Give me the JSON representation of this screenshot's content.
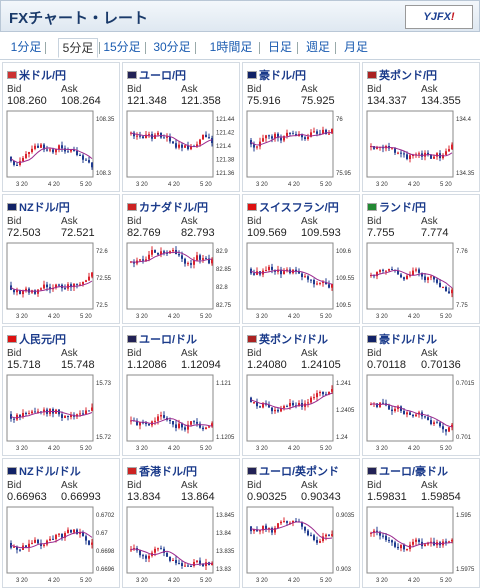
{
  "header": {
    "title": "FXチャート・レート",
    "logo": "YJFX!"
  },
  "tabs": [
    "1分足",
    "5分足",
    "15分足",
    "30分足",
    "1時間足",
    "日足",
    "週足",
    "月足"
  ],
  "active_tab": 1,
  "labels": {
    "bid": "Bid",
    "ask": "Ask"
  },
  "pairs": [
    {
      "name": "米ドル/円",
      "bid": "108.260",
      "ask": "108.264",
      "ticks": [
        "108.35",
        "108.3"
      ],
      "x": [
        "3 20",
        "4 20",
        "5 20"
      ],
      "flag": "#c33"
    },
    {
      "name": "ユーロ/円",
      "bid": "121.348",
      "ask": "121.358",
      "ticks": [
        "121.44",
        "121.42",
        "121.4",
        "121.38",
        "121.36"
      ],
      "x": [
        "3 20",
        "4 20",
        "5 20"
      ],
      "flag": "#225"
    },
    {
      "name": "豪ドル/円",
      "bid": "75.916",
      "ask": "75.925",
      "ticks": [
        "76",
        "75.95"
      ],
      "x": [
        "3 20",
        "4 20",
        "5 20"
      ],
      "flag": "#126"
    },
    {
      "name": "英ポンド/円",
      "bid": "134.337",
      "ask": "134.355",
      "ticks": [
        "134.4",
        "134.35"
      ],
      "x": [
        "3 20",
        "4 20",
        "5 20"
      ],
      "flag": "#a22"
    },
    {
      "name": "NZドル/円",
      "bid": "72.503",
      "ask": "72.521",
      "ticks": [
        "72.6",
        "72.55",
        "72.5"
      ],
      "x": [
        "3 20",
        "4 20",
        "5 20"
      ],
      "flag": "#126"
    },
    {
      "name": "カナダドル/円",
      "bid": "82.769",
      "ask": "82.793",
      "ticks": [
        "82.9",
        "82.85",
        "82.8",
        "82.75"
      ],
      "x": [
        "3 20",
        "4 20",
        "5 20"
      ],
      "flag": "#c22"
    },
    {
      "name": "スイスフラン/円",
      "bid": "109.569",
      "ask": "109.593",
      "ticks": [
        "109.6",
        "109.55",
        "109.5"
      ],
      "x": [
        "3 20",
        "4 20",
        "5 20"
      ],
      "flag": "#d11"
    },
    {
      "name": "ランド/円",
      "bid": "7.755",
      "ask": "7.774",
      "ticks": [
        "7.76",
        "7.75"
      ],
      "x": [
        "3 20",
        "4 20",
        "5 20"
      ],
      "flag": "#283"
    },
    {
      "name": "人民元/円",
      "bid": "15.718",
      "ask": "15.748",
      "ticks": [
        "15.73",
        "15.72"
      ],
      "x": [
        "3 20",
        "4 20",
        "5 20"
      ],
      "flag": "#d11"
    },
    {
      "name": "ユーロ/ドル",
      "bid": "1.12086",
      "ask": "1.12094",
      "ticks": [
        "1.121",
        "1.1205"
      ],
      "x": [
        "3 20",
        "4 20",
        "5 20"
      ],
      "flag": "#225"
    },
    {
      "name": "英ポンド/ドル",
      "bid": "1.24080",
      "ask": "1.24105",
      "ticks": [
        "1.241",
        "1.2405",
        "1.24"
      ],
      "x": [
        "3 20",
        "4 20",
        "5 20"
      ],
      "flag": "#a22"
    },
    {
      "name": "豪ドル/ドル",
      "bid": "0.70118",
      "ask": "0.70136",
      "ticks": [
        "0.7015",
        "0.701"
      ],
      "x": [
        "3 20",
        "4 20",
        "5 20"
      ],
      "flag": "#126"
    },
    {
      "name": "NZドル/ドル",
      "bid": "0.66963",
      "ask": "0.66993",
      "ticks": [
        "0.6702",
        "0.67",
        "0.6698",
        "0.6696"
      ],
      "x": [
        "3 20",
        "4 20",
        "5 20"
      ],
      "flag": "#126"
    },
    {
      "name": "香港ドル/円",
      "bid": "13.834",
      "ask": "13.864",
      "ticks": [
        "13.845",
        "13.84",
        "13.835",
        "13.83"
      ],
      "x": [
        "3 20",
        "4 20",
        "5 20"
      ],
      "flag": "#c22"
    },
    {
      "name": "ユーロ/英ポンド",
      "bid": "0.90325",
      "ask": "0.90343",
      "ticks": [
        "0.9035",
        "0.903"
      ],
      "x": [
        "3 20",
        "4 20",
        "5 20"
      ],
      "flag": "#225"
    },
    {
      "name": "ユーロ/豪ドル",
      "bid": "1.59831",
      "ask": "1.59854",
      "ticks": [
        "1.595",
        "1.5975"
      ],
      "x": [
        "3 20",
        "4 20",
        "5 20"
      ],
      "flag": "#225"
    }
  ],
  "colors": {
    "up": "#d9232d",
    "down": "#1f3b8f",
    "ma": "#9c2b8f",
    "link": "#1a5bb0"
  }
}
